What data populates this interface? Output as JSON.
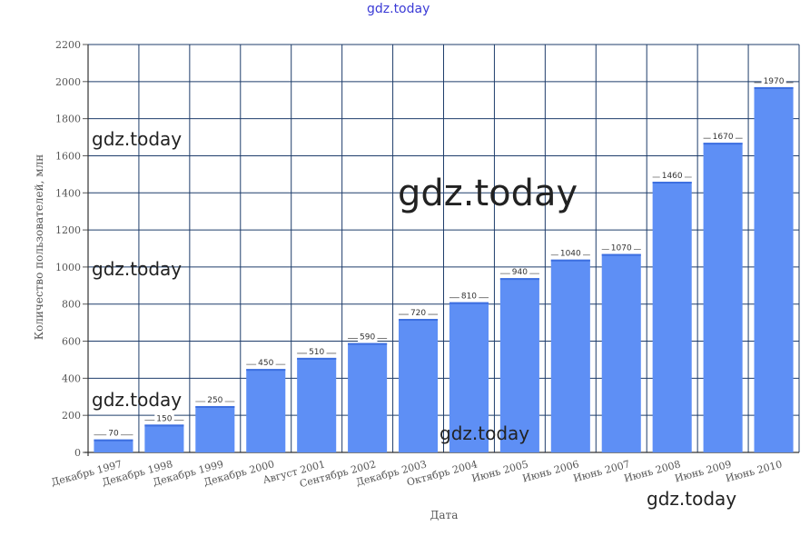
{
  "watermarks": {
    "top": "gdz.today",
    "left1": "gdz.today",
    "left2": "gdz.today",
    "left3": "gdz.today",
    "center": "gdz.today",
    "bottom_center": "gdz.today",
    "bottom_right": "gdz.today"
  },
  "colors": {
    "bar": "#5e8ff5",
    "bar_dark": "#3d6fe0",
    "grid": "#1f3d6b"
  },
  "chart_data": {
    "type": "bar",
    "title": "",
    "xlabel": "Дата",
    "ylabel": "Количество пользователей, млн",
    "ylim": [
      0,
      2200
    ],
    "yticks": [
      0,
      200,
      400,
      600,
      800,
      1000,
      1200,
      1400,
      1600,
      1800,
      2000,
      2200
    ],
    "grid": true,
    "categories": [
      "Декабрь 1997",
      "Декабрь 1998",
      "Декабрь 1999",
      "Декабрь 2000",
      "Август 2001",
      "Сентябрь 2002",
      "Декабрь 2003",
      "Октябрь 2004",
      "Июнь 2005",
      "Июнь 2006",
      "Июнь 2007",
      "Июнь 2008",
      "Июнь 2009",
      "Июнь 2010"
    ],
    "values": [
      70,
      150,
      250,
      450,
      510,
      590,
      720,
      810,
      940,
      1040,
      1070,
      1460,
      1670,
      1970
    ]
  }
}
